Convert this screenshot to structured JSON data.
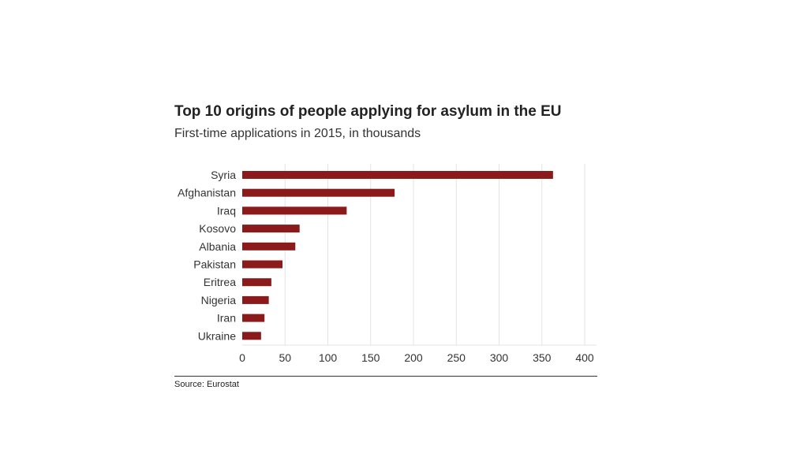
{
  "chart_data": {
    "type": "bar",
    "orientation": "horizontal",
    "title": "Top 10 origins of people applying for asylum in the EU",
    "subtitle": "First-time applications in 2015, in thousands",
    "categories": [
      "Syria",
      "Afghanistan",
      "Iraq",
      "Kosovo",
      "Albania",
      "Pakistan",
      "Eritrea",
      "Nigeria",
      "Iran",
      "Ukraine"
    ],
    "values": [
      363,
      178,
      122,
      67,
      62,
      47,
      34,
      31,
      26,
      22
    ],
    "xticks": [
      0,
      50,
      100,
      150,
      200,
      250,
      300,
      350,
      400
    ],
    "xlim": [
      0,
      400
    ],
    "grid": true,
    "bar_color": "#8b1a1a",
    "source": "Source: Eurostat"
  }
}
